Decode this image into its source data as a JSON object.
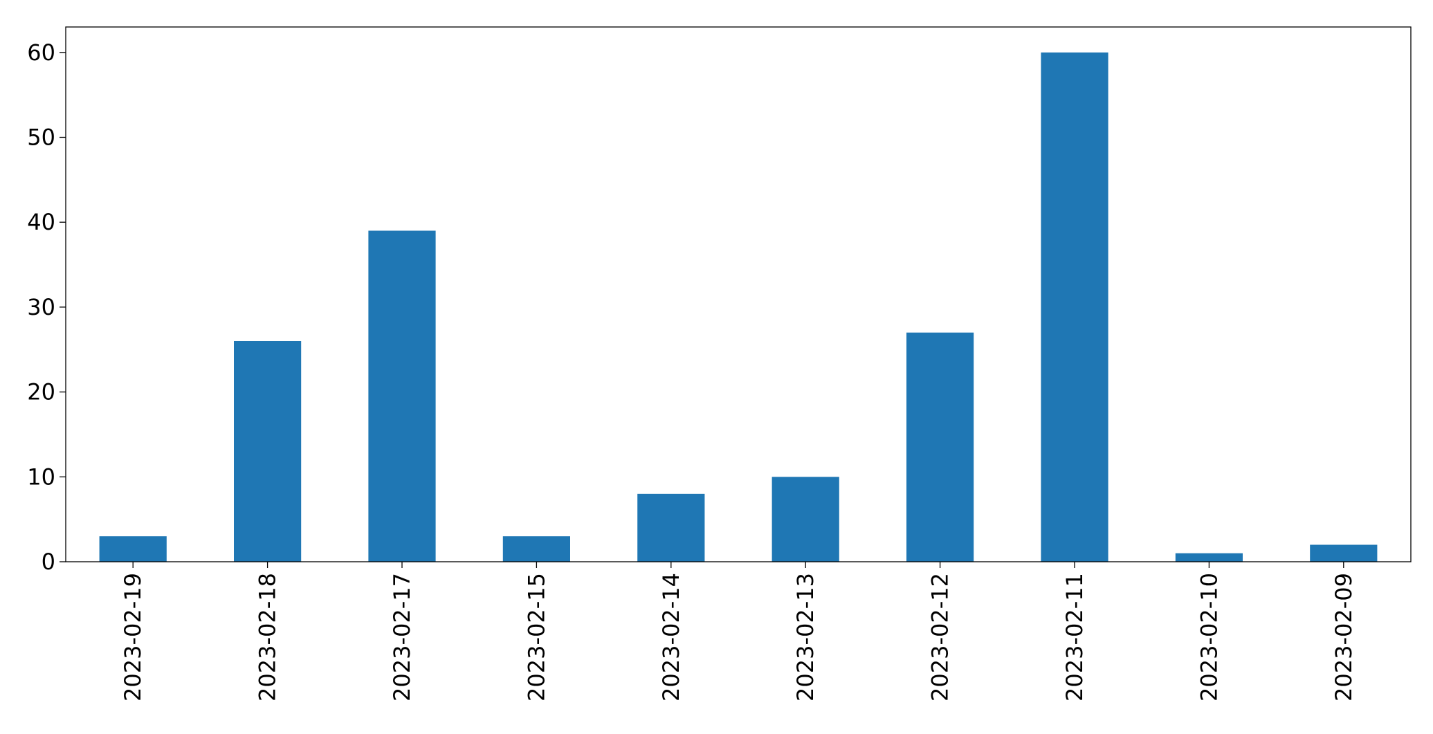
{
  "chart_data": {
    "type": "bar",
    "categories": [
      "2023-02-19",
      "2023-02-18",
      "2023-02-17",
      "2023-02-15",
      "2023-02-14",
      "2023-02-13",
      "2023-02-12",
      "2023-02-11",
      "2023-02-10",
      "2023-02-09"
    ],
    "values": [
      3,
      26,
      39,
      3,
      8,
      10,
      27,
      60,
      1,
      2
    ],
    "title": "",
    "xlabel": "",
    "ylabel": "",
    "ylim": [
      0,
      63
    ],
    "yticks": [
      0,
      10,
      20,
      30,
      40,
      50,
      60
    ],
    "grid": false,
    "legend": "none",
    "bar_color": "#1f77b4",
    "x_tick_rotation": "vertical"
  }
}
